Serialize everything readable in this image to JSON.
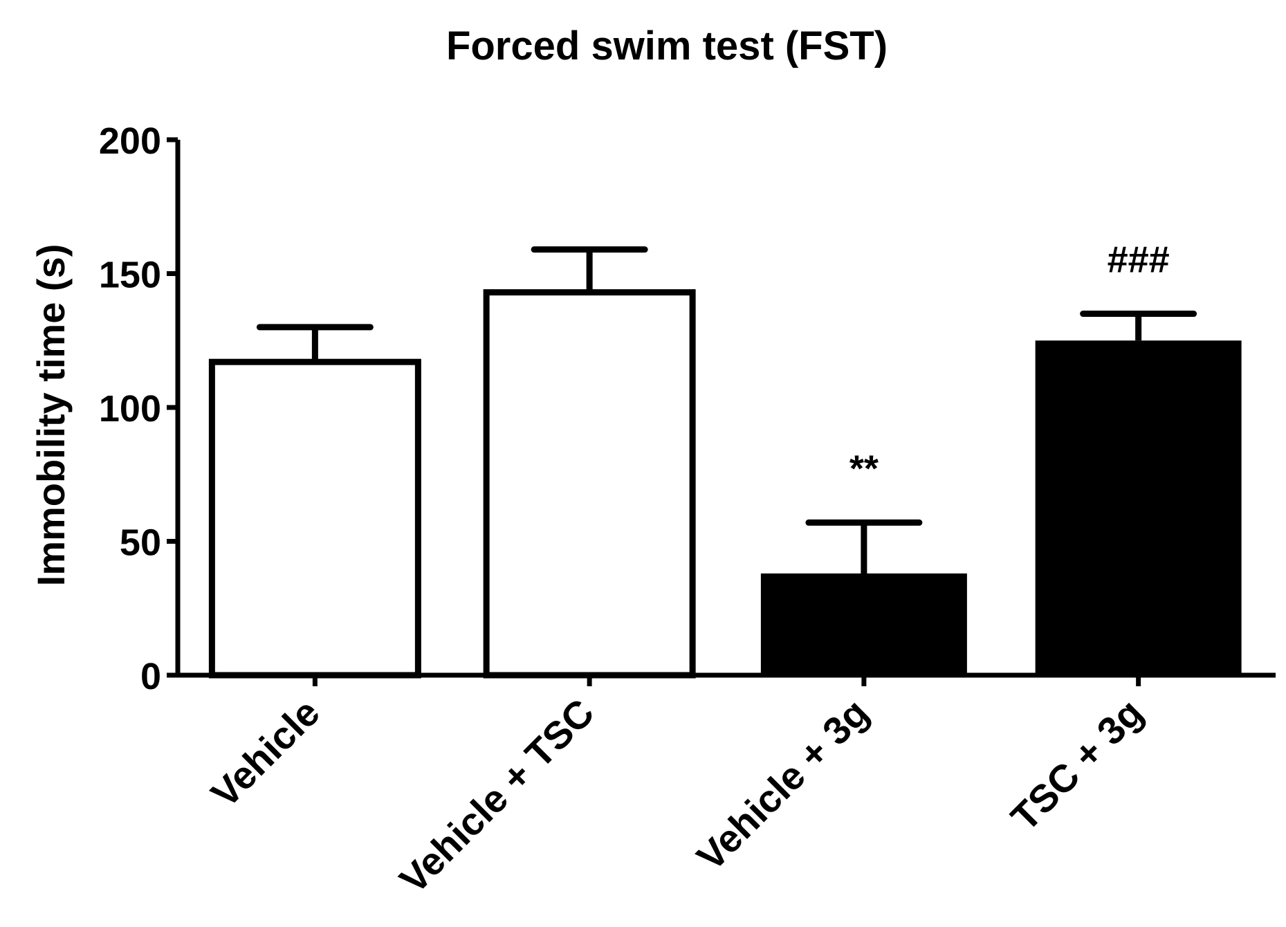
{
  "chart_data": {
    "type": "bar",
    "title": "Forced swim test (FST)",
    "ylabel": "Immobility time (s)",
    "xlabel": "",
    "ylim": [
      0,
      200
    ],
    "yticks": [
      0,
      50,
      100,
      150,
      200
    ],
    "ytick_labels": [
      "0",
      "50",
      "100",
      "150",
      "200"
    ],
    "categories": [
      "Vehicle",
      "Vehicle + TSC",
      "Vehicle + 3g",
      "TSC + 3g"
    ],
    "values": [
      117,
      143,
      38,
      125
    ],
    "error_upper": [
      130,
      159,
      57,
      135
    ],
    "fills": [
      "#ffffff",
      "#ffffff",
      "#000000",
      "#000000"
    ],
    "annotations": [
      "",
      "",
      "**",
      "###"
    ],
    "grid": false
  }
}
